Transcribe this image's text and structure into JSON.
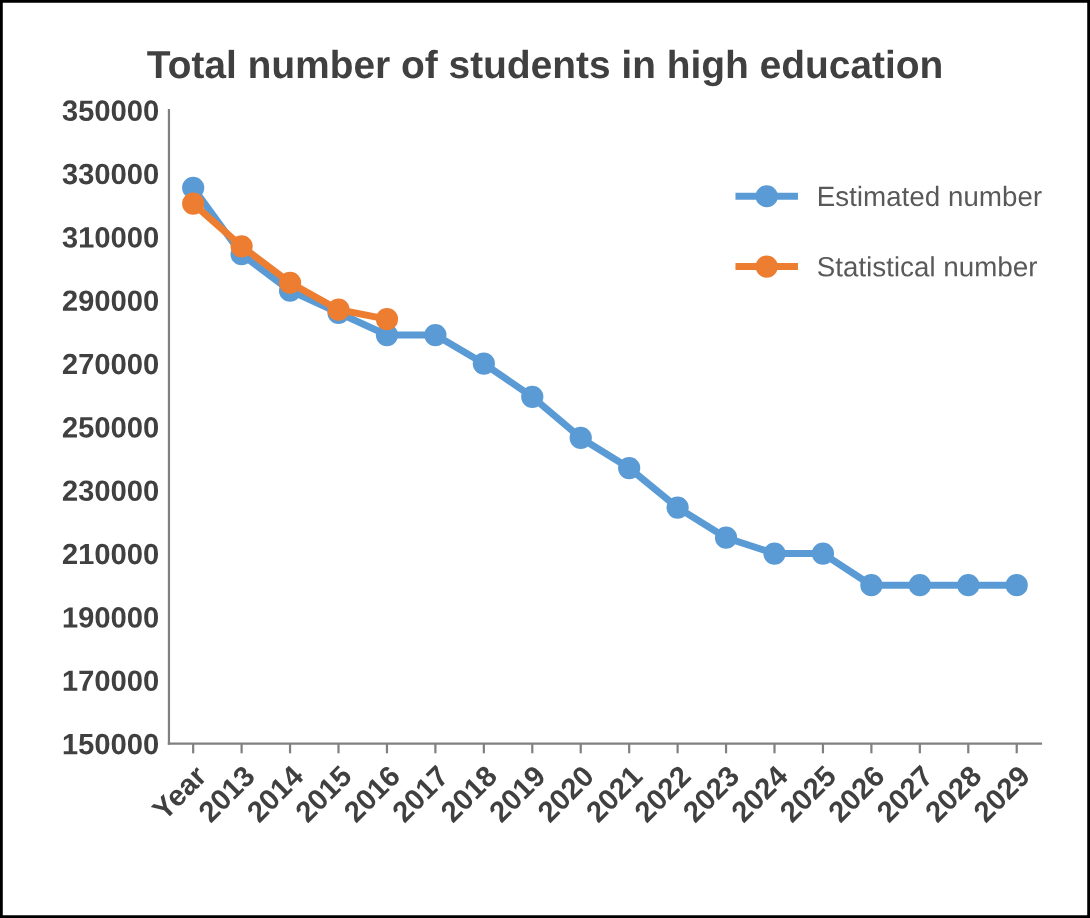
{
  "chart_data": {
    "type": "line",
    "title": "Total number of students in high education",
    "categories": [
      "Year",
      "2013",
      "2014",
      "2015",
      "2016",
      "2017",
      "2018",
      "2019",
      "2020",
      "2021",
      "2022",
      "2023",
      "2024",
      "2025",
      "2026",
      "2027",
      "2028",
      "2029"
    ],
    "series": [
      {
        "name": "Estimated number",
        "color": "#5b9bd5",
        "values": [
          325500,
          304500,
          293000,
          286000,
          279000,
          279000,
          270000,
          259500,
          246500,
          237000,
          224500,
          215000,
          210000,
          210000,
          200000,
          200000,
          200000,
          200000
        ]
      },
      {
        "name": "Statistical number",
        "color": "#ed7d31",
        "values": [
          320500,
          307000,
          295500,
          287000,
          284000,
          null,
          null,
          null,
          null,
          null,
          null,
          null,
          null,
          null,
          null,
          null,
          null,
          null
        ]
      }
    ],
    "ylim": [
      150000,
      350000
    ],
    "yticks": [
      150000,
      170000,
      190000,
      210000,
      230000,
      250000,
      270000,
      290000,
      310000,
      330000,
      350000
    ],
    "grid": false,
    "legend": "top right",
    "marker": "circle",
    "line_style": "solid"
  }
}
